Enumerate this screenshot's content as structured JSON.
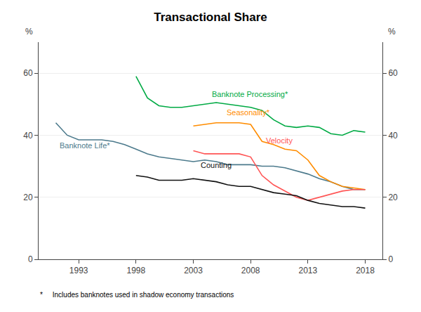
{
  "chart_data": {
    "type": "line",
    "title": "Transactional Share",
    "ylabel": "%",
    "y2label": "%",
    "footnote": "*     Includes banknotes used in shadow economy transactions",
    "xlim": [
      1989.5,
      2019.5
    ],
    "xticks": [
      1993,
      1998,
      2003,
      2008,
      2013,
      2018
    ],
    "ylim": [
      0,
      70
    ],
    "yticks": [
      0,
      20,
      40,
      60
    ],
    "y2lim": [
      0,
      70
    ],
    "y2ticks": [
      0,
      20,
      40,
      60
    ],
    "grid": "y",
    "series": [
      {
        "name": "Banknote Life*",
        "color": "#4C7A8C",
        "x": [
          1991,
          1992,
          1993,
          1994,
          1995,
          1996,
          1997,
          1998,
          1999,
          2000,
          2001,
          2002,
          2003,
          2004,
          2005,
          2006,
          2007,
          2008,
          2009,
          2010,
          2011,
          2012,
          2013,
          2014,
          2015,
          2016,
          2017,
          2018
        ],
        "values": [
          44,
          40,
          38.5,
          38.5,
          38.5,
          38,
          37,
          35.5,
          34,
          33,
          32.5,
          32,
          31.5,
          32,
          31.5,
          30.5,
          30.5,
          30.5,
          30,
          30,
          29.5,
          28.5,
          27.5,
          26,
          25,
          23.5,
          22.5,
          22.5
        ]
      },
      {
        "name": "Banknote Processing*",
        "color": "#00AA44",
        "x": [
          1998,
          1999,
          2000,
          2001,
          2002,
          2003,
          2004,
          2005,
          2006,
          2007,
          2008,
          2009,
          2010,
          2011,
          2012,
          2013,
          2014,
          2015,
          2016,
          2017,
          2018
        ],
        "values": [
          59,
          52,
          49.5,
          49,
          49,
          49.5,
          50,
          50.5,
          50,
          49.5,
          49,
          48,
          45,
          43,
          42.5,
          43,
          42.5,
          40.5,
          40,
          41.5,
          41
        ]
      },
      {
        "name": "Seasonality*",
        "color": "#FF8C00",
        "x": [
          2003,
          2004,
          2005,
          2006,
          2007,
          2008,
          2009,
          2010,
          2011,
          2012,
          2013,
          2014,
          2015,
          2016,
          2017,
          2018
        ],
        "values": [
          43,
          43.5,
          44,
          44,
          44,
          43.5,
          38,
          37,
          35.5,
          35,
          32,
          27,
          25,
          23.5,
          23,
          22.5
        ]
      },
      {
        "name": "Velocity",
        "color": "#FF5555",
        "x": [
          2003,
          2004,
          2005,
          2006,
          2007,
          2008,
          2009,
          2010,
          2011,
          2012,
          2013,
          2014,
          2015,
          2016,
          2017,
          2018
        ],
        "values": [
          35,
          34,
          34,
          34,
          34,
          33,
          27,
          24,
          22,
          20,
          19,
          20,
          21,
          22,
          22.5,
          22.5
        ]
      },
      {
        "name": "Counting",
        "color": "#111111",
        "x": [
          1998,
          1999,
          2000,
          2001,
          2002,
          2003,
          2004,
          2005,
          2006,
          2007,
          2008,
          2009,
          2010,
          2011,
          2012,
          2013,
          2014,
          2015,
          2016,
          2017,
          2018
        ],
        "values": [
          27,
          26.5,
          25.5,
          25.5,
          25.5,
          26,
          25.5,
          25,
          24,
          23.5,
          23.5,
          22.5,
          21.5,
          21,
          20.5,
          19,
          18,
          17.5,
          17,
          17,
          16.5
        ]
      }
    ],
    "annotations": [
      {
        "text": "Banknote Processing*",
        "x": 2004.5,
        "y": 51.5,
        "color": "#00AA44"
      },
      {
        "text": "Seasonality*",
        "x": 2005.8,
        "y": 45.5,
        "color": "#FF8C00"
      },
      {
        "text": "Velocity",
        "x": 2009.2,
        "y": 36.5,
        "color": "#FF5555"
      },
      {
        "text": "Banknote Life*",
        "x": 1991.2,
        "y": 35.0,
        "color": "#4C7A8C"
      },
      {
        "text": "Counting",
        "x": 2003.5,
        "y": 28.5,
        "color": "#111111"
      }
    ]
  }
}
